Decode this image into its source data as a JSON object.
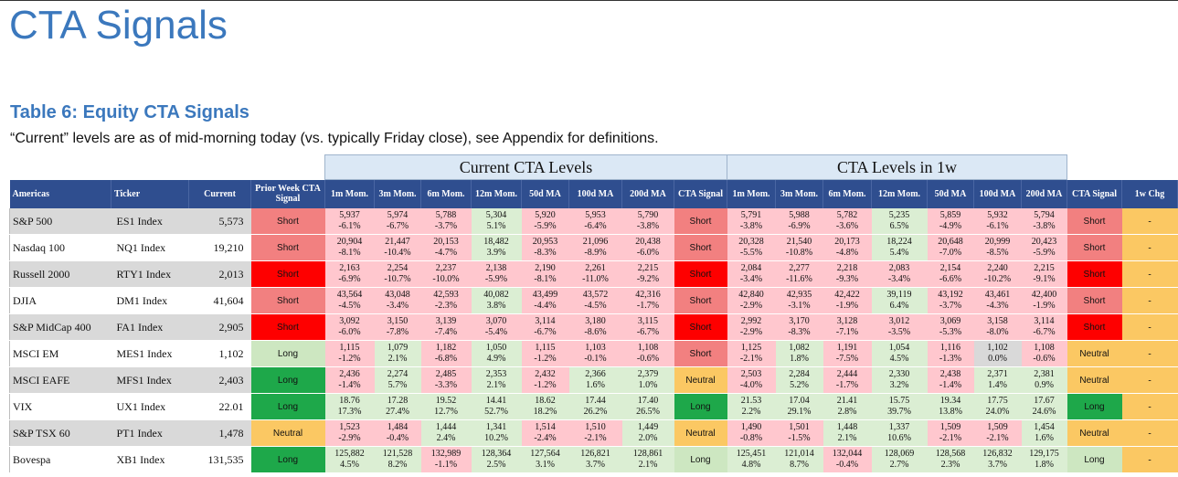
{
  "title": "CTA Signals",
  "table_title": "Table 6: Equity CTA Signals",
  "note": "“Current” levels are as of mid-morning today (vs. typically Friday close), see Appendix for definitions.",
  "group_headers": {
    "current": "Current CTA Levels",
    "one_week": "CTA Levels in 1w"
  },
  "column_headers": {
    "americas": "Americas",
    "ticker": "Ticker",
    "current": "Current",
    "prior_week_signal": "Prior Week CTA Signal",
    "m1": "1m Mom.",
    "m3": "3m Mom.",
    "m6": "6m Mom.",
    "m12": "12m Mom.",
    "ma50": "50d MA",
    "ma100": "100d MA",
    "ma200": "200d MA",
    "cta_signal": "CTA Signal",
    "chg_1w": "1w Chg"
  },
  "colors": {
    "header_blue": "#2f4e8f",
    "short_dark": "#fe0000",
    "short_light": "#f28080",
    "long_dark": "#1ea84a",
    "long_light": "#cde7c1",
    "neutral": "#fbc863",
    "cell_pink": "#ffc7ce",
    "cell_green": "#dbeed3",
    "cell_grey": "#d9d9d9"
  },
  "rows": [
    {
      "name": "S&P 500",
      "ticker": "ES1 Index",
      "current": "5,573",
      "prior": "Short",
      "prior_color": "#f28080",
      "cur": [
        [
          "5,937",
          "-6.1%",
          "#ffc7ce"
        ],
        [
          "5,974",
          "-6.7%",
          "#ffc7ce"
        ],
        [
          "5,788",
          "-3.7%",
          "#ffc7ce"
        ],
        [
          "5,304",
          "5.1%",
          "#dbeed3"
        ],
        [
          "5,920",
          "-5.9%",
          "#ffc7ce"
        ],
        [
          "5,953",
          "-6.4%",
          "#ffc7ce"
        ],
        [
          "5,790",
          "-3.8%",
          "#ffc7ce"
        ]
      ],
      "signal": "Short",
      "signal_color": "#f28080",
      "wk": [
        [
          "5,791",
          "-3.8%",
          "#ffc7ce"
        ],
        [
          "5,988",
          "-6.9%",
          "#ffc7ce"
        ],
        [
          "5,782",
          "-3.6%",
          "#ffc7ce"
        ],
        [
          "5,235",
          "6.5%",
          "#dbeed3"
        ],
        [
          "5,859",
          "-4.9%",
          "#ffc7ce"
        ],
        [
          "5,932",
          "-6.1%",
          "#ffc7ce"
        ],
        [
          "5,794",
          "-3.8%",
          "#ffc7ce"
        ]
      ],
      "signal_1w": "Short",
      "signal_1w_color": "#f28080",
      "chg": "-"
    },
    {
      "name": "Nasdaq 100",
      "ticker": "NQ1 Index",
      "current": "19,210",
      "prior": "Short",
      "prior_color": "#f28080",
      "cur": [
        [
          "20,904",
          "-8.1%",
          "#ffc7ce"
        ],
        [
          "21,447",
          "-10.4%",
          "#ffc7ce"
        ],
        [
          "20,153",
          "-4.7%",
          "#ffc7ce"
        ],
        [
          "18,482",
          "3.9%",
          "#dbeed3"
        ],
        [
          "20,953",
          "-8.3%",
          "#ffc7ce"
        ],
        [
          "21,096",
          "-8.9%",
          "#ffc7ce"
        ],
        [
          "20,438",
          "-6.0%",
          "#ffc7ce"
        ]
      ],
      "signal": "Short",
      "signal_color": "#f28080",
      "wk": [
        [
          "20,328",
          "-5.5%",
          "#ffc7ce"
        ],
        [
          "21,540",
          "-10.8%",
          "#ffc7ce"
        ],
        [
          "20,173",
          "-4.8%",
          "#ffc7ce"
        ],
        [
          "18,224",
          "5.4%",
          "#dbeed3"
        ],
        [
          "20,648",
          "-7.0%",
          "#ffc7ce"
        ],
        [
          "20,999",
          "-8.5%",
          "#ffc7ce"
        ],
        [
          "20,423",
          "-5.9%",
          "#ffc7ce"
        ]
      ],
      "signal_1w": "Short",
      "signal_1w_color": "#f28080",
      "chg": "-"
    },
    {
      "name": "Russell 2000",
      "ticker": "RTY1 Index",
      "current": "2,013",
      "prior": "Short",
      "prior_color": "#fe0000",
      "cur": [
        [
          "2,163",
          "-6.9%",
          "#ffc7ce"
        ],
        [
          "2,254",
          "-10.7%",
          "#ffc7ce"
        ],
        [
          "2,237",
          "-10.0%",
          "#ffc7ce"
        ],
        [
          "2,138",
          "-5.9%",
          "#ffc7ce"
        ],
        [
          "2,190",
          "-8.1%",
          "#ffc7ce"
        ],
        [
          "2,261",
          "-11.0%",
          "#ffc7ce"
        ],
        [
          "2,215",
          "-9.2%",
          "#ffc7ce"
        ]
      ],
      "signal": "Short",
      "signal_color": "#fe0000",
      "wk": [
        [
          "2,084",
          "-3.4%",
          "#ffc7ce"
        ],
        [
          "2,277",
          "-11.6%",
          "#ffc7ce"
        ],
        [
          "2,218",
          "-9.3%",
          "#ffc7ce"
        ],
        [
          "2,083",
          "-3.4%",
          "#ffc7ce"
        ],
        [
          "2,154",
          "-6.6%",
          "#ffc7ce"
        ],
        [
          "2,240",
          "-10.2%",
          "#ffc7ce"
        ],
        [
          "2,215",
          "-9.1%",
          "#ffc7ce"
        ]
      ],
      "signal_1w": "Short",
      "signal_1w_color": "#fe0000",
      "chg": "-"
    },
    {
      "name": "DJIA",
      "ticker": "DM1 Index",
      "current": "41,604",
      "prior": "Short",
      "prior_color": "#f28080",
      "cur": [
        [
          "43,564",
          "-4.5%",
          "#ffc7ce"
        ],
        [
          "43,048",
          "-3.4%",
          "#ffc7ce"
        ],
        [
          "42,593",
          "-2.3%",
          "#ffc7ce"
        ],
        [
          "40,082",
          "3.8%",
          "#dbeed3"
        ],
        [
          "43,499",
          "-4.4%",
          "#ffc7ce"
        ],
        [
          "43,572",
          "-4.5%",
          "#ffc7ce"
        ],
        [
          "42,316",
          "-1.7%",
          "#ffc7ce"
        ]
      ],
      "signal": "Short",
      "signal_color": "#f28080",
      "wk": [
        [
          "42,840",
          "-2.9%",
          "#ffc7ce"
        ],
        [
          "42,935",
          "-3.1%",
          "#ffc7ce"
        ],
        [
          "42,422",
          "-1.9%",
          "#ffc7ce"
        ],
        [
          "39,119",
          "6.4%",
          "#dbeed3"
        ],
        [
          "43,192",
          "-3.7%",
          "#ffc7ce"
        ],
        [
          "43,461",
          "-4.3%",
          "#ffc7ce"
        ],
        [
          "42,400",
          "-1.9%",
          "#ffc7ce"
        ]
      ],
      "signal_1w": "Short",
      "signal_1w_color": "#f28080",
      "chg": "-"
    },
    {
      "name": "S&P MidCap 400",
      "ticker": "FA1 Index",
      "current": "2,905",
      "prior": "Short",
      "prior_color": "#fe0000",
      "cur": [
        [
          "3,092",
          "-6.0%",
          "#ffc7ce"
        ],
        [
          "3,150",
          "-7.8%",
          "#ffc7ce"
        ],
        [
          "3,139",
          "-7.4%",
          "#ffc7ce"
        ],
        [
          "3,070",
          "-5.4%",
          "#ffc7ce"
        ],
        [
          "3,114",
          "-6.7%",
          "#ffc7ce"
        ],
        [
          "3,180",
          "-8.6%",
          "#ffc7ce"
        ],
        [
          "3,115",
          "-6.7%",
          "#ffc7ce"
        ]
      ],
      "signal": "Short",
      "signal_color": "#fe0000",
      "wk": [
        [
          "2,992",
          "-2.9%",
          "#ffc7ce"
        ],
        [
          "3,170",
          "-8.3%",
          "#ffc7ce"
        ],
        [
          "3,128",
          "-7.1%",
          "#ffc7ce"
        ],
        [
          "3,012",
          "-3.5%",
          "#ffc7ce"
        ],
        [
          "3,069",
          "-5.3%",
          "#ffc7ce"
        ],
        [
          "3,158",
          "-8.0%",
          "#ffc7ce"
        ],
        [
          "3,114",
          "-6.7%",
          "#ffc7ce"
        ]
      ],
      "signal_1w": "Short",
      "signal_1w_color": "#fe0000",
      "chg": "-"
    },
    {
      "name": "MSCI EM",
      "ticker": "MES1 Index",
      "current": "1,102",
      "prior": "Long",
      "prior_color": "#cde7c1",
      "cur": [
        [
          "1,115",
          "-1.2%",
          "#ffc7ce"
        ],
        [
          "1,079",
          "2.1%",
          "#dbeed3"
        ],
        [
          "1,182",
          "-6.8%",
          "#ffc7ce"
        ],
        [
          "1,050",
          "4.9%",
          "#dbeed3"
        ],
        [
          "1,115",
          "-1.2%",
          "#ffc7ce"
        ],
        [
          "1,103",
          "-0.1%",
          "#ffc7ce"
        ],
        [
          "1,108",
          "-0.6%",
          "#ffc7ce"
        ]
      ],
      "signal": "Short",
      "signal_color": "#f28080",
      "wk": [
        [
          "1,125",
          "-2.1%",
          "#ffc7ce"
        ],
        [
          "1,082",
          "1.8%",
          "#dbeed3"
        ],
        [
          "1,191",
          "-7.5%",
          "#ffc7ce"
        ],
        [
          "1,054",
          "4.5%",
          "#dbeed3"
        ],
        [
          "1,116",
          "-1.3%",
          "#ffc7ce"
        ],
        [
          "1,102",
          "0.0%",
          "#d9d9d9"
        ],
        [
          "1,108",
          "-0.6%",
          "#ffc7ce"
        ]
      ],
      "signal_1w": "Neutral",
      "signal_1w_color": "#fbc863",
      "chg": "-"
    },
    {
      "name": "MSCI EAFE",
      "ticker": "MFS1 Index",
      "current": "2,403",
      "prior": "Long",
      "prior_color": "#1ea84a",
      "cur": [
        [
          "2,436",
          "-1.4%",
          "#ffc7ce"
        ],
        [
          "2,274",
          "5.7%",
          "#dbeed3"
        ],
        [
          "2,485",
          "-3.3%",
          "#ffc7ce"
        ],
        [
          "2,353",
          "2.1%",
          "#dbeed3"
        ],
        [
          "2,432",
          "-1.2%",
          "#ffc7ce"
        ],
        [
          "2,366",
          "1.6%",
          "#dbeed3"
        ],
        [
          "2,379",
          "1.0%",
          "#dbeed3"
        ]
      ],
      "signal": "Neutral",
      "signal_color": "#fbc863",
      "wk": [
        [
          "2,503",
          "-4.0%",
          "#ffc7ce"
        ],
        [
          "2,284",
          "5.2%",
          "#dbeed3"
        ],
        [
          "2,444",
          "-1.7%",
          "#ffc7ce"
        ],
        [
          "2,330",
          "3.2%",
          "#dbeed3"
        ],
        [
          "2,438",
          "-1.4%",
          "#ffc7ce"
        ],
        [
          "2,371",
          "1.4%",
          "#dbeed3"
        ],
        [
          "2,381",
          "0.9%",
          "#dbeed3"
        ]
      ],
      "signal_1w": "Neutral",
      "signal_1w_color": "#fbc863",
      "chg": "-"
    },
    {
      "name": "VIX",
      "ticker": "UX1 Index",
      "current": "22.01",
      "prior": "Long",
      "prior_color": "#1ea84a",
      "cur": [
        [
          "18.76",
          "17.3%",
          "#dbeed3"
        ],
        [
          "17.28",
          "27.4%",
          "#dbeed3"
        ],
        [
          "19.52",
          "12.7%",
          "#dbeed3"
        ],
        [
          "14.41",
          "52.7%",
          "#dbeed3"
        ],
        [
          "18.62",
          "18.2%",
          "#dbeed3"
        ],
        [
          "17.44",
          "26.2%",
          "#dbeed3"
        ],
        [
          "17.40",
          "26.5%",
          "#dbeed3"
        ]
      ],
      "signal": "Long",
      "signal_color": "#1ea84a",
      "wk": [
        [
          "21.53",
          "2.2%",
          "#dbeed3"
        ],
        [
          "17.04",
          "29.1%",
          "#dbeed3"
        ],
        [
          "21.41",
          "2.8%",
          "#dbeed3"
        ],
        [
          "15.75",
          "39.7%",
          "#dbeed3"
        ],
        [
          "19.34",
          "13.8%",
          "#dbeed3"
        ],
        [
          "17.75",
          "24.0%",
          "#dbeed3"
        ],
        [
          "17.67",
          "24.6%",
          "#dbeed3"
        ]
      ],
      "signal_1w": "Long",
      "signal_1w_color": "#1ea84a",
      "chg": "-"
    },
    {
      "name": "S&P TSX 60",
      "ticker": "PT1 Index",
      "current": "1,478",
      "prior": "Neutral",
      "prior_color": "#fbc863",
      "cur": [
        [
          "1,523",
          "-2.9%",
          "#ffc7ce"
        ],
        [
          "1,484",
          "-0.4%",
          "#ffc7ce"
        ],
        [
          "1,444",
          "2.4%",
          "#dbeed3"
        ],
        [
          "1,341",
          "10.2%",
          "#dbeed3"
        ],
        [
          "1,514",
          "-2.4%",
          "#ffc7ce"
        ],
        [
          "1,510",
          "-2.1%",
          "#ffc7ce"
        ],
        [
          "1,449",
          "2.0%",
          "#dbeed3"
        ]
      ],
      "signal": "Neutral",
      "signal_color": "#fbc863",
      "wk": [
        [
          "1,490",
          "-0.8%",
          "#ffc7ce"
        ],
        [
          "1,501",
          "-1.5%",
          "#ffc7ce"
        ],
        [
          "1,448",
          "2.1%",
          "#dbeed3"
        ],
        [
          "1,337",
          "10.6%",
          "#dbeed3"
        ],
        [
          "1,509",
          "-2.1%",
          "#ffc7ce"
        ],
        [
          "1,509",
          "-2.1%",
          "#ffc7ce"
        ],
        [
          "1,454",
          "1.6%",
          "#dbeed3"
        ]
      ],
      "signal_1w": "Neutral",
      "signal_1w_color": "#fbc863",
      "chg": "-"
    },
    {
      "name": "Bovespa",
      "ticker": "XB1 Index",
      "current": "131,535",
      "prior": "Long",
      "prior_color": "#1ea84a",
      "cur": [
        [
          "125,882",
          "4.5%",
          "#dbeed3"
        ],
        [
          "121,528",
          "8.2%",
          "#dbeed3"
        ],
        [
          "132,989",
          "-1.1%",
          "#ffc7ce"
        ],
        [
          "128,364",
          "2.5%",
          "#dbeed3"
        ],
        [
          "127,564",
          "3.1%",
          "#dbeed3"
        ],
        [
          "126,821",
          "3.7%",
          "#dbeed3"
        ],
        [
          "128,861",
          "2.1%",
          "#dbeed3"
        ]
      ],
      "signal": "Long",
      "signal_color": "#cde7c1",
      "wk": [
        [
          "125,451",
          "4.8%",
          "#dbeed3"
        ],
        [
          "121,014",
          "8.7%",
          "#dbeed3"
        ],
        [
          "132,044",
          "-0.4%",
          "#ffc7ce"
        ],
        [
          "128,069",
          "2.7%",
          "#dbeed3"
        ],
        [
          "128,568",
          "2.3%",
          "#dbeed3"
        ],
        [
          "126,832",
          "3.7%",
          "#dbeed3"
        ],
        [
          "129,175",
          "1.8%",
          "#dbeed3"
        ]
      ],
      "signal_1w": "Long",
      "signal_1w_color": "#cde7c1",
      "chg": "-"
    }
  ]
}
